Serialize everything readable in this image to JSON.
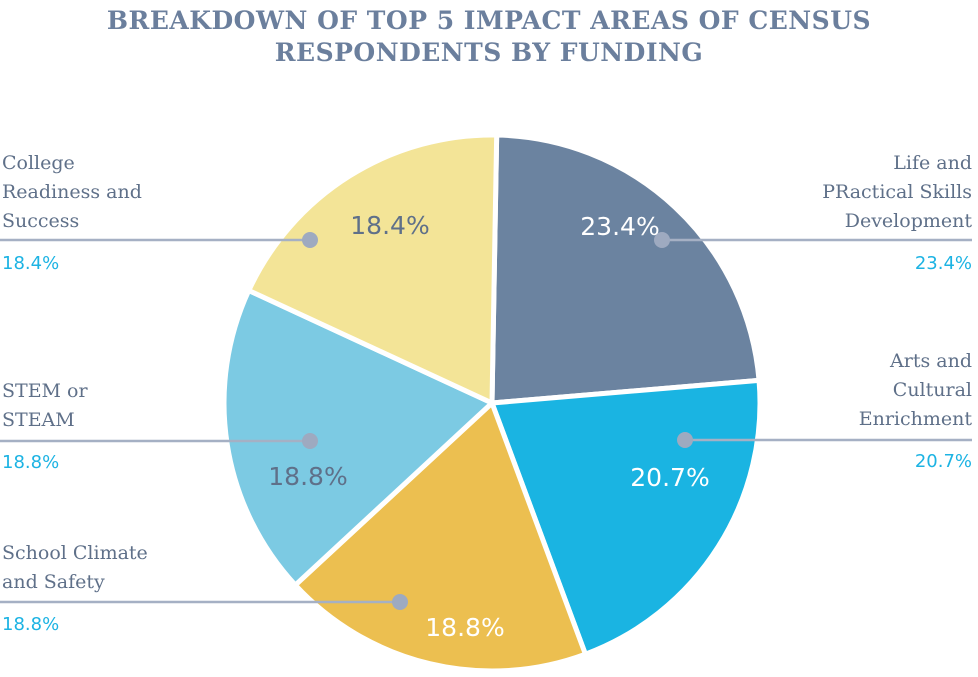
{
  "chart_data": {
    "type": "pie",
    "title_lines": [
      "BREAKDOWN OF TOP 5 IMPACT AREAS OF CENSUS",
      "RESPONDENTS BY FUNDING"
    ],
    "slices": [
      {
        "label_lines": [
          "Life and",
          "PRactical Skills",
          "Development"
        ],
        "value": 23.4,
        "pct_label": "23.4%",
        "color": "#6b83a0",
        "label_color": "#ffffff",
        "side": "right"
      },
      {
        "label_lines": [
          "Arts and",
          "Cultural",
          "Enrichment"
        ],
        "value": 20.7,
        "pct_label": "20.7%",
        "color": "#1ab4e2",
        "label_color": "#ffffff",
        "side": "right"
      },
      {
        "label_lines": [
          "School Climate",
          "and Safety"
        ],
        "value": 18.8,
        "pct_label": "18.8%",
        "color": "#ecbf50",
        "label_color": "#ffffff",
        "side": "left"
      },
      {
        "label_lines": [
          "STEM or",
          "STEAM"
        ],
        "value": 18.8,
        "pct_label": "18.8%",
        "color": "#7ccae3",
        "label_color": "#5f7089",
        "side": "left"
      },
      {
        "label_lines": [
          "College",
          "Readiness and",
          "Success"
        ],
        "value": 18.4,
        "pct_label": "18.4%",
        "color": "#f3e497",
        "label_color": "#5f7089",
        "side": "left"
      }
    ],
    "colors": {
      "title": "#6b7f9d",
      "callout_line": "#a5b0c4",
      "callout_dot": "#9eaac0",
      "callout_text": "#5f7089",
      "callout_pct": "#1cb3e3"
    }
  }
}
